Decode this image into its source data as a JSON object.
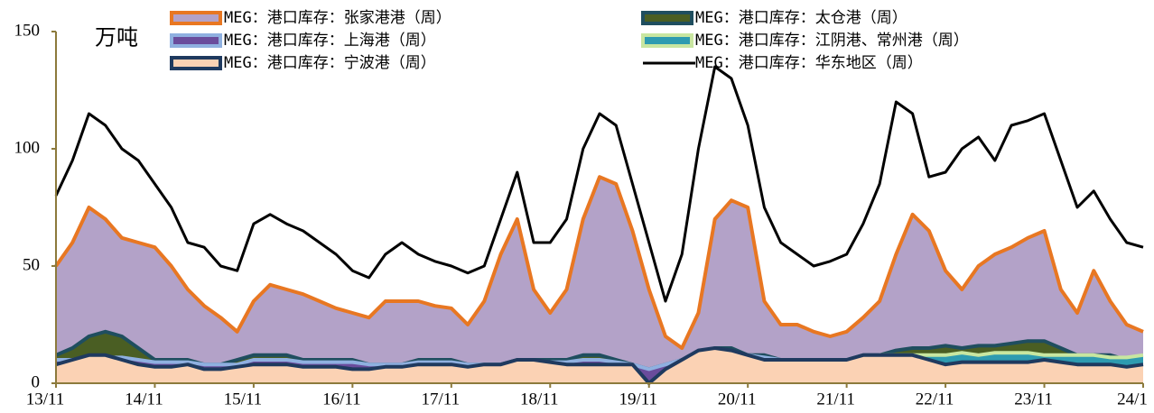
{
  "chart_data": {
    "type": "area",
    "y_label": "万吨",
    "categories": [
      "13/11",
      null,
      null,
      null,
      null,
      null,
      "14/11",
      null,
      null,
      null,
      null,
      null,
      "15/11",
      null,
      null,
      null,
      null,
      null,
      "16/11",
      null,
      null,
      null,
      null,
      null,
      "17/11",
      null,
      null,
      null,
      null,
      null,
      "18/11",
      null,
      null,
      null,
      null,
      null,
      "19/11",
      null,
      null,
      null,
      null,
      null,
      "20/11",
      null,
      null,
      null,
      null,
      null,
      "21/11",
      null,
      null,
      null,
      null,
      null,
      "22/11",
      null,
      null,
      null,
      null,
      null,
      "23/11",
      null,
      null,
      null,
      null,
      null,
      "24/1"
    ],
    "ylim": [
      0,
      150
    ],
    "yticks": [
      0,
      50,
      100,
      150
    ],
    "series": [
      {
        "name": "MEG：港口库存：张家港港（周）",
        "color": "#e87722",
        "fill": "#b3a2c8",
        "values": [
          50,
          60,
          75,
          70,
          62,
          60,
          58,
          50,
          40,
          33,
          28,
          22,
          35,
          42,
          40,
          38,
          35,
          32,
          30,
          28,
          35,
          35,
          35,
          33,
          32,
          25,
          35,
          55,
          70,
          40,
          30,
          40,
          70,
          88,
          85,
          65,
          40,
          20,
          15,
          30,
          70,
          78,
          75,
          35,
          25,
          25,
          22,
          20,
          22,
          28,
          35,
          55,
          72,
          65,
          48,
          40,
          50,
          55,
          58,
          62,
          65,
          40,
          30,
          48,
          35,
          25,
          22
        ]
      },
      {
        "name": "MEG：港口库存：太仓港（周）",
        "color": "#1f4e5f",
        "fill": "#4a5e23",
        "values": [
          12,
          15,
          20,
          22,
          20,
          15,
          10,
          10,
          10,
          8,
          8,
          10,
          12,
          12,
          12,
          10,
          10,
          10,
          10,
          8,
          8,
          8,
          10,
          10,
          10,
          8,
          8,
          8,
          10,
          10,
          10,
          10,
          12,
          12,
          10,
          8,
          6,
          8,
          10,
          12,
          15,
          15,
          12,
          12,
          10,
          10,
          10,
          8,
          10,
          12,
          12,
          14,
          15,
          15,
          16,
          15,
          16,
          16,
          17,
          18,
          18,
          15,
          12,
          12,
          12,
          10,
          10
        ]
      },
      {
        "name": "MEG：港口库存：上海港（周）",
        "color": "#8fb0e0",
        "fill": "#6a4c9c",
        "values": [
          10,
          10,
          11,
          11,
          11,
          10,
          9,
          9,
          9,
          8,
          8,
          8,
          10,
          10,
          10,
          9,
          9,
          9,
          9,
          8,
          8,
          8,
          9,
          9,
          9,
          8,
          8,
          8,
          9,
          9,
          9,
          9,
          10,
          10,
          9,
          8,
          6,
          8,
          10,
          12,
          13,
          13,
          12,
          11,
          10,
          10,
          10,
          9,
          10,
          11,
          11,
          11,
          11,
          11,
          11,
          11,
          11,
          11,
          11,
          11,
          11,
          11,
          11,
          10,
          10,
          10,
          10
        ]
      },
      {
        "name": "MEG：港口库存：江阴港、常州港（周）",
        "color": "#c8e6a0",
        "fill": "#2e9bb0",
        "values": [
          null,
          null,
          null,
          null,
          null,
          null,
          null,
          null,
          null,
          null,
          null,
          null,
          null,
          null,
          null,
          null,
          null,
          null,
          null,
          null,
          null,
          null,
          null,
          null,
          null,
          null,
          null,
          null,
          null,
          null,
          null,
          null,
          null,
          null,
          null,
          null,
          null,
          null,
          null,
          null,
          13,
          12,
          10,
          8,
          7,
          8,
          9,
          10,
          10,
          11,
          12,
          12,
          12,
          12,
          12,
          13,
          12,
          13,
          13,
          13,
          12,
          12,
          12,
          12,
          11,
          11,
          12
        ]
      },
      {
        "name": "MEG：港口库存：宁波港（周）",
        "color": "#1f3a5f",
        "fill": "#fbd2b4",
        "values": [
          8,
          10,
          12,
          12,
          10,
          8,
          7,
          7,
          8,
          6,
          6,
          7,
          8,
          8,
          8,
          7,
          7,
          7,
          6,
          6,
          7,
          7,
          8,
          8,
          8,
          7,
          8,
          8,
          10,
          10,
          9,
          8,
          8,
          8,
          8,
          8,
          0,
          6,
          10,
          14,
          15,
          14,
          12,
          10,
          10,
          10,
          10,
          10,
          10,
          12,
          12,
          12,
          12,
          10,
          8,
          9,
          9,
          9,
          9,
          9,
          10,
          9,
          8,
          8,
          8,
          7,
          8
        ]
      },
      {
        "name": "MEG：港口库存：华东地区（周）",
        "color": "#000000",
        "fill": null,
        "values": [
          80,
          95,
          115,
          110,
          100,
          95,
          85,
          75,
          60,
          58,
          50,
          48,
          68,
          72,
          68,
          65,
          60,
          55,
          48,
          45,
          55,
          60,
          55,
          52,
          50,
          47,
          50,
          70,
          90,
          60,
          60,
          70,
          100,
          115,
          110,
          85,
          60,
          35,
          55,
          100,
          135,
          130,
          110,
          75,
          60,
          55,
          50,
          52,
          55,
          68,
          85,
          120,
          115,
          88,
          90,
          100,
          105,
          95,
          110,
          112,
          115,
          95,
          75,
          82,
          70,
          60,
          58
        ]
      }
    ]
  }
}
